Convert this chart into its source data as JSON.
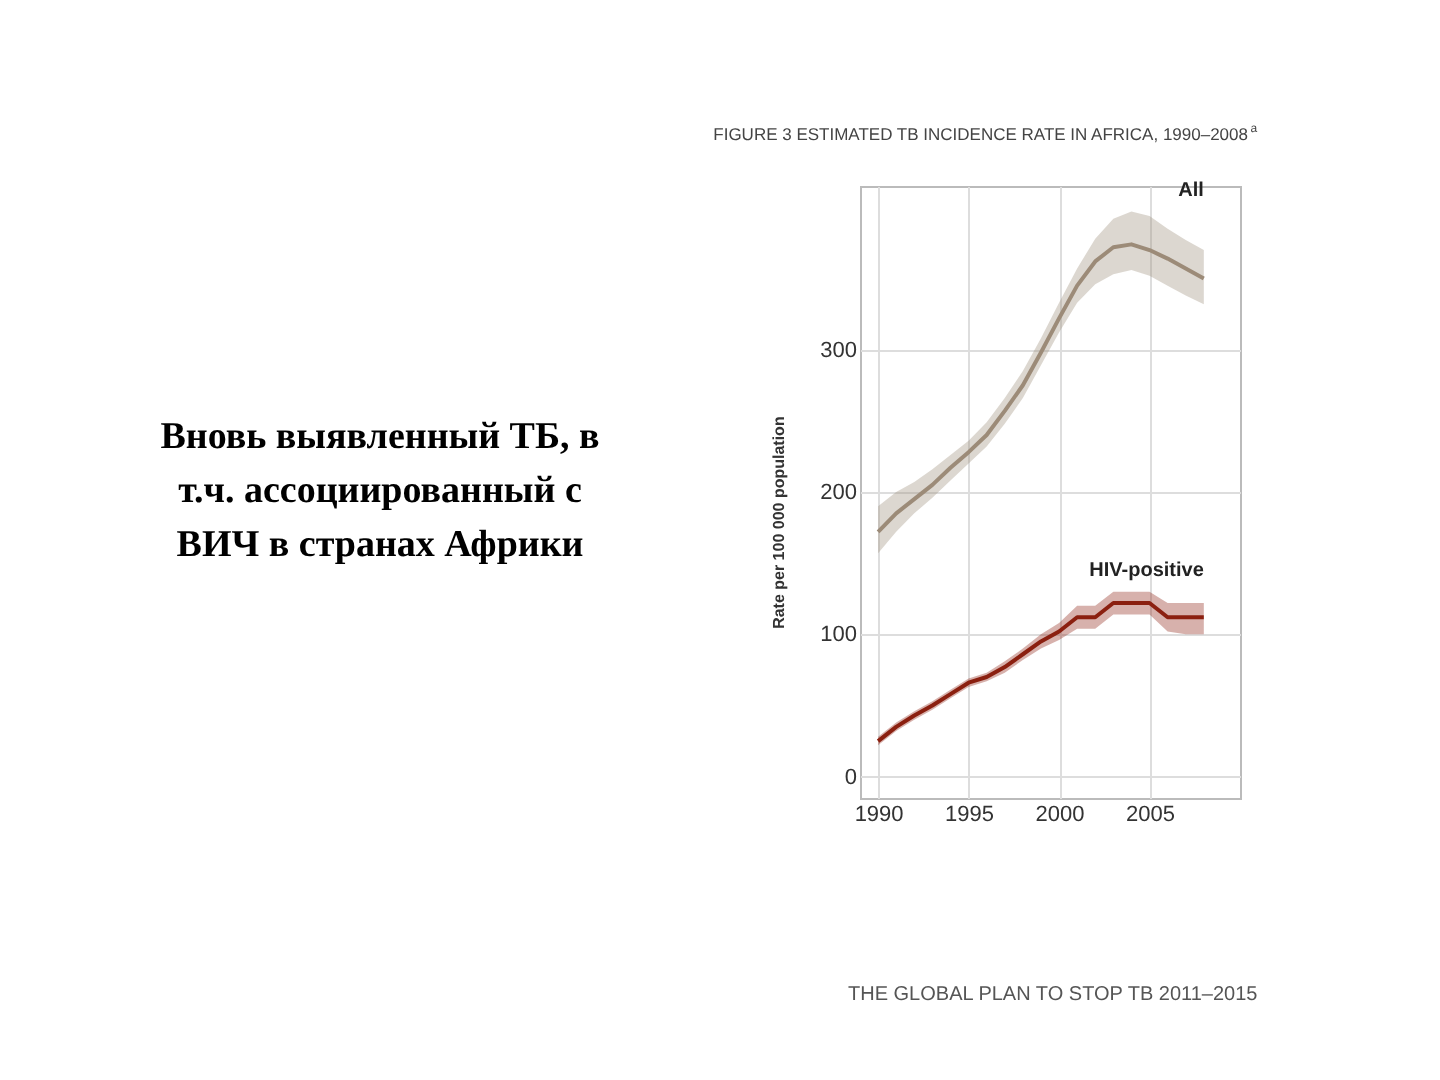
{
  "chart_data": {
    "type": "line",
    "title": "FIGURE 3 ESTIMATED TB INCIDENCE RATE IN AFRICA, 1990–2008$^{a}$",
    "ylabel": "Rate per 100 000 population",
    "x": [
      1990,
      1991,
      1992,
      1993,
      1994,
      1995,
      1996,
      1997,
      1998,
      1999,
      2000,
      2001,
      2002,
      2003,
      2004,
      2005,
      2006,
      2007,
      2008
    ],
    "series": [
      {
        "name": "All",
        "color": "#9c8b78",
        "values": [
          172,
          185,
          195,
          205,
          217,
          228,
          240,
          257,
          275,
          298,
          322,
          345,
          362,
          372,
          374,
          370,
          364,
          357,
          350
        ],
        "lower": [
          157,
          172,
          185,
          196,
          208,
          220,
          232,
          248,
          266,
          289,
          312,
          333,
          346,
          353,
          356,
          352,
          345,
          338,
          332
        ],
        "upper": [
          190,
          200,
          207,
          216,
          226,
          236,
          249,
          266,
          285,
          308,
          333,
          357,
          378,
          392,
          397,
          394,
          385,
          377,
          370
        ]
      },
      {
        "name": "HIV-positive",
        "color": "#8b2010",
        "values": [
          25,
          35,
          43,
          50,
          58,
          66,
          70,
          77,
          86,
          95,
          102,
          112,
          112,
          122,
          122,
          122,
          112,
          112,
          112
        ],
        "lower": [
          22,
          32,
          40,
          47,
          55,
          63,
          67,
          73,
          82,
          90,
          96,
          104,
          104,
          114,
          114,
          114,
          102,
          100,
          100
        ],
        "upper": [
          28,
          38,
          46,
          53,
          61,
          69,
          73,
          81,
          90,
          100,
          108,
          120,
          120,
          130,
          130,
          130,
          122,
          122,
          122
        ]
      }
    ],
    "xlim": [
      1989,
      2010
    ],
    "xticks": [
      1990,
      1995,
      2000,
      2005
    ],
    "ylim": [
      -15,
      415
    ],
    "yticks": [
      0,
      100,
      200,
      300
    ],
    "grid": true,
    "legend": false,
    "annotations": [
      "Вновь выявленный ТБ, в т.ч. ассоциированный с ВИЧ в странах Африки",
      "THE GLOBAL PLAN TO STOP TB 2011–2015"
    ]
  }
}
